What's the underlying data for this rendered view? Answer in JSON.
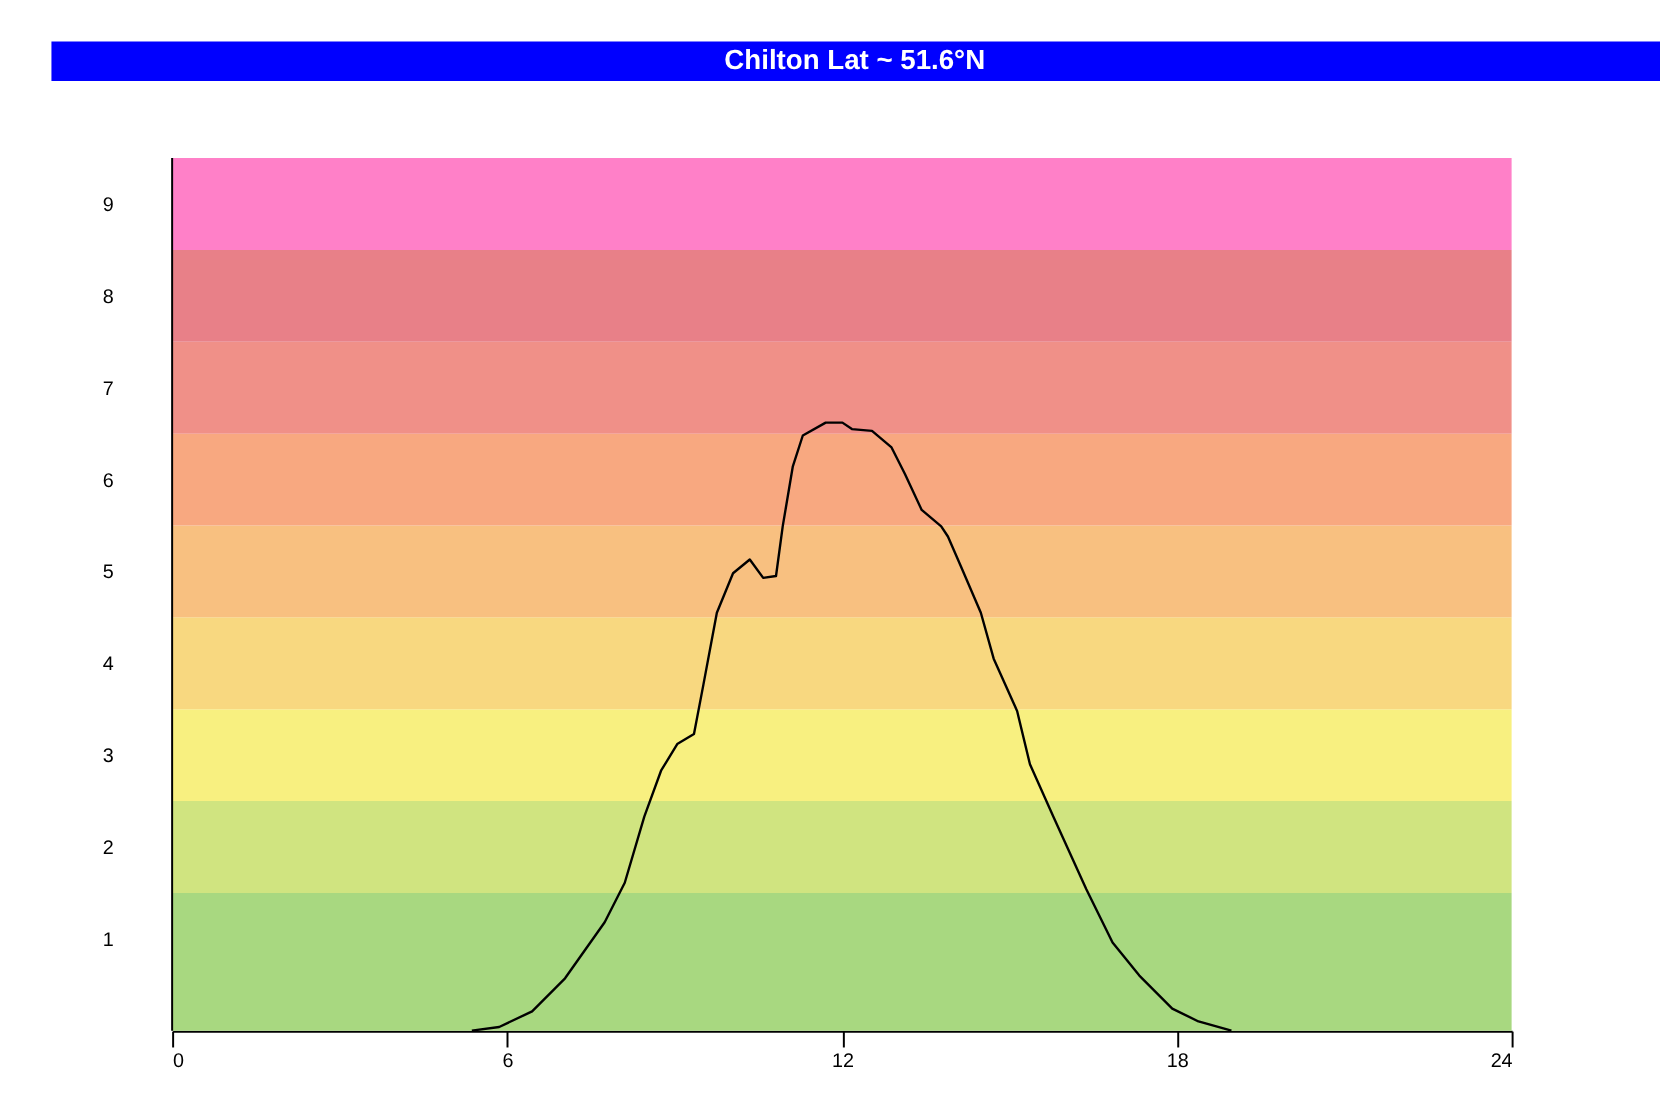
{
  "chart_data": {
    "type": "line",
    "title": "Chilton Lat ~ 51.6°N",
    "x": [
      5.37,
      5.86,
      6.45,
      7.04,
      7.75,
      8.11,
      8.46,
      8.76,
      9.05,
      9.35,
      9.52,
      9.76,
      10.05,
      10.35,
      10.59,
      10.82,
      10.94,
      11.12,
      11.3,
      11.71,
      12.01,
      12.18,
      12.54,
      12.89,
      13.13,
      13.43,
      13.78,
      13.9,
      14.13,
      14.49,
      14.72,
      15.14,
      15.37,
      15.79,
      16.38,
      16.85,
      17.33,
      17.92,
      18.39,
      18.98
    ],
    "series": [
      {
        "color": "#000000",
        "values": [
          0,
          0.04,
          0.21,
          0.57,
          1.18,
          1.61,
          2.33,
          2.83,
          3.12,
          3.23,
          3.77,
          4.55,
          4.98,
          5.13,
          4.93,
          4.95,
          5.49,
          6.14,
          6.48,
          6.62,
          6.62,
          6.55,
          6.53,
          6.35,
          6.06,
          5.67,
          5.49,
          5.38,
          5.06,
          4.55,
          4.05,
          3.48,
          2.9,
          2.33,
          1.54,
          0.96,
          0.6,
          0.24,
          0.1,
          0
        ]
      }
    ],
    "xlim": [
      0,
      24
    ],
    "xticks": [
      0,
      6,
      12,
      18,
      24
    ],
    "ylim": [
      0,
      9.5
    ],
    "yticks": [
      1,
      2,
      3,
      4,
      5,
      6,
      7,
      8,
      9
    ],
    "bands": [
      {
        "axis": "y",
        "from": 0,
        "to": 1.5,
        "color": "#a8d880"
      },
      {
        "axis": "y",
        "from": 1.5,
        "to": 2.5,
        "color": "#d0e480"
      },
      {
        "axis": "y",
        "from": 2.5,
        "to": 3.5,
        "color": "#f8f080"
      },
      {
        "axis": "y",
        "from": 3.5,
        "to": 4.5,
        "color": "#f8d880"
      },
      {
        "axis": "y",
        "from": 4.5,
        "to": 5.5,
        "color": "#f8c080"
      },
      {
        "axis": "y",
        "from": 5.5,
        "to": 6.5,
        "color": "#f8a880"
      },
      {
        "axis": "y",
        "from": 6.5,
        "to": 7.5,
        "color": "#f09088"
      },
      {
        "axis": "y",
        "from": 7.5,
        "to": 8.5,
        "color": "#e88088"
      },
      {
        "axis": "y",
        "from": 8.5,
        "to": 9.5,
        "color": "#ff80c8"
      }
    ],
    "grid": false,
    "legend": false,
    "marker": "none",
    "line_style": "solid"
  }
}
